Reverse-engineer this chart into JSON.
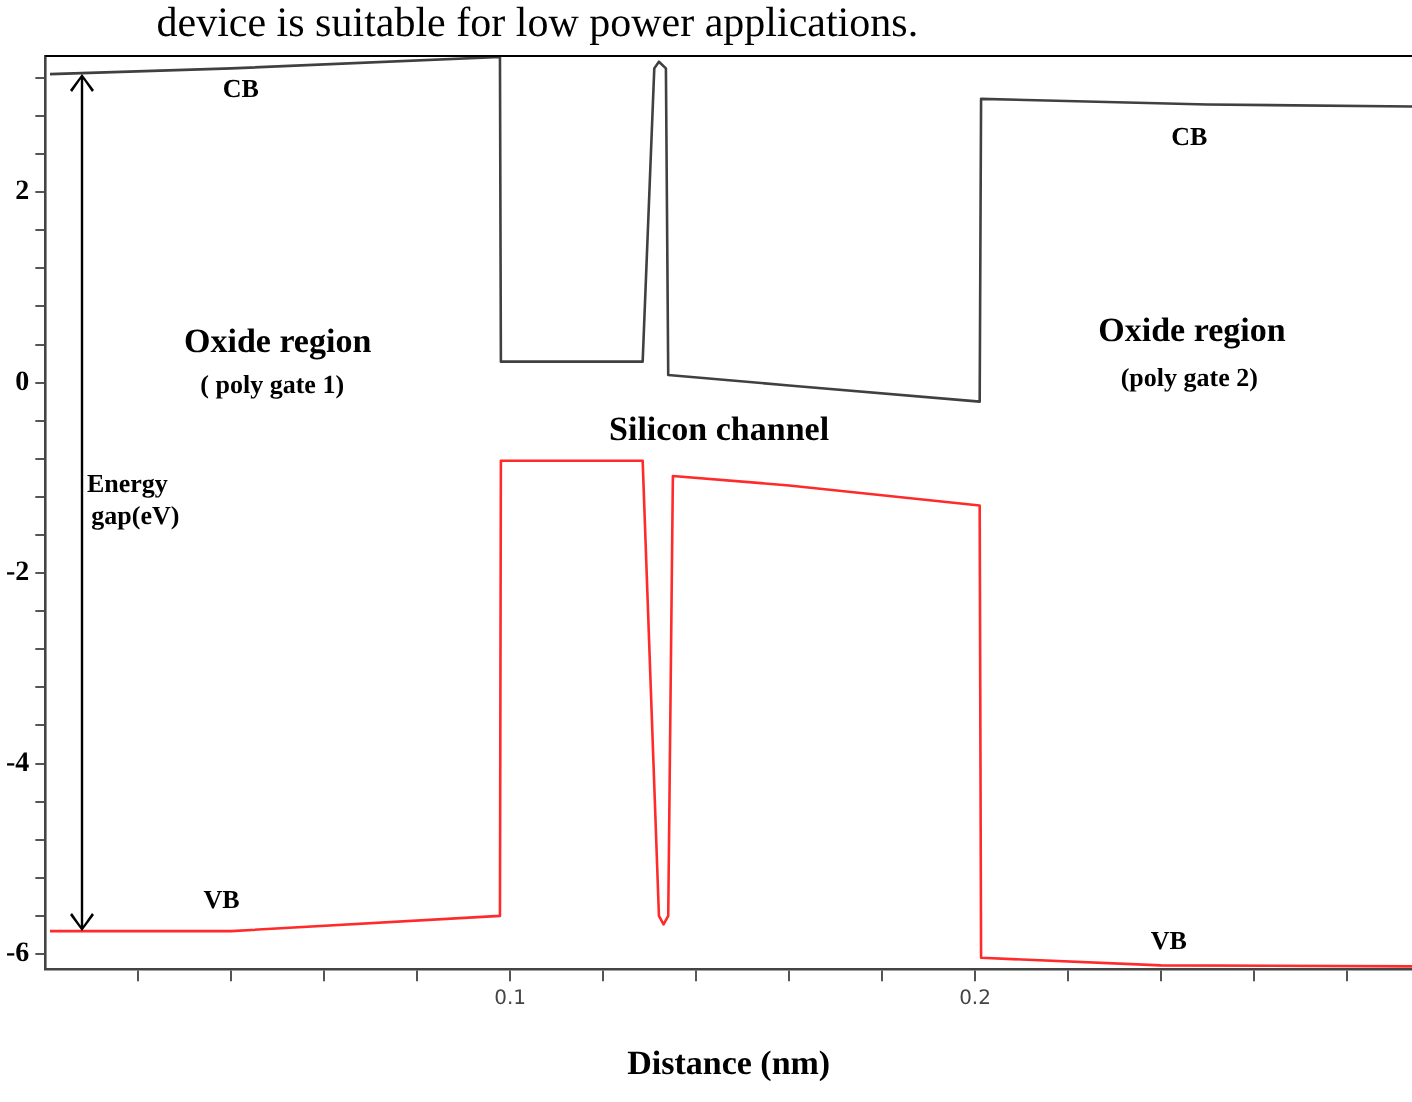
{
  "chart_data": {
    "type": "line",
    "xlabel": "Distance (nm)",
    "annotations": [
      "device is suitable for low power applications.",
      "CB",
      "CB",
      "Oxide region",
      "( poly gate 1)",
      "Silicon channel",
      "Oxide region",
      "(poly gate 2)",
      "Energy gap(eV)",
      "VB",
      "VB"
    ],
    "series": [
      {
        "name": null,
        "color": "#404040",
        "x": [
          0.001,
          0.04,
          0.0978,
          0.098,
          0.1285,
          0.131,
          0.132,
          0.1335,
          0.134,
          0.16,
          0.201,
          0.2013,
          0.25,
          0.294
        ],
        "values": [
          3.24,
          3.3,
          3.42,
          0.22,
          0.22,
          3.3,
          3.37,
          3.3,
          0.08,
          -0.03,
          -0.2,
          2.98,
          2.92,
          2.9
        ]
      },
      {
        "name": null,
        "color": "#ff2a2a",
        "x": [
          0.001,
          0.04,
          0.0978,
          0.098,
          0.1285,
          0.132,
          0.133,
          0.134,
          0.135,
          0.16,
          0.201,
          0.2013,
          0.24,
          0.294
        ],
        "values": [
          -5.76,
          -5.76,
          -5.6,
          -0.82,
          -0.82,
          -5.6,
          -5.69,
          -5.6,
          -0.98,
          -1.08,
          -1.29,
          -6.04,
          -6.12,
          -6.13
        ]
      }
    ],
    "xlim": [
      0,
      0.294
    ],
    "xticks": [
      {
        "value": 0.02,
        "label": null
      },
      {
        "value": 0.04,
        "label": null
      },
      {
        "value": 0.06,
        "label": null
      },
      {
        "value": 0.08,
        "label": null
      },
      0.1,
      {
        "value": 0.12,
        "label": null
      },
      {
        "value": 0.14,
        "label": null
      },
      {
        "value": 0.16,
        "label": null
      },
      {
        "value": 0.18,
        "label": null
      },
      0.2,
      {
        "value": 0.22,
        "label": null
      },
      {
        "value": 0.24,
        "label": null
      },
      {
        "value": 0.26,
        "label": null
      },
      {
        "value": 0.28,
        "label": null
      }
    ],
    "ylim": [
      -6.16,
      3.43
    ],
    "yticks": [
      -6,
      {
        "value": -5.6,
        "label": null
      },
      {
        "value": -5.2,
        "label": null
      },
      {
        "value": -4.8,
        "label": null
      },
      {
        "value": -4.4,
        "label": null
      },
      -4,
      {
        "value": -3.6,
        "label": null
      },
      {
        "value": -3.2,
        "label": null
      },
      {
        "value": -2.8,
        "label": null
      },
      {
        "value": -2.4,
        "label": null
      },
      -2,
      {
        "value": -1.6,
        "label": null
      },
      {
        "value": -1.2,
        "label": null
      },
      {
        "value": -0.8,
        "label": null
      },
      {
        "value": -0.4,
        "label": null
      },
      0,
      {
        "value": 0.4,
        "label": null
      },
      {
        "value": 0.8,
        "label": null
      },
      {
        "value": 1.2,
        "label": null
      },
      {
        "value": 1.6,
        "label": null
      },
      2,
      {
        "value": 2.4,
        "label": null
      },
      {
        "value": 2.8,
        "label": null
      },
      {
        "value": 3.2,
        "label": null
      }
    ],
    "grid": false,
    "legend": false,
    "marker": "none",
    "line_style": "solid"
  }
}
